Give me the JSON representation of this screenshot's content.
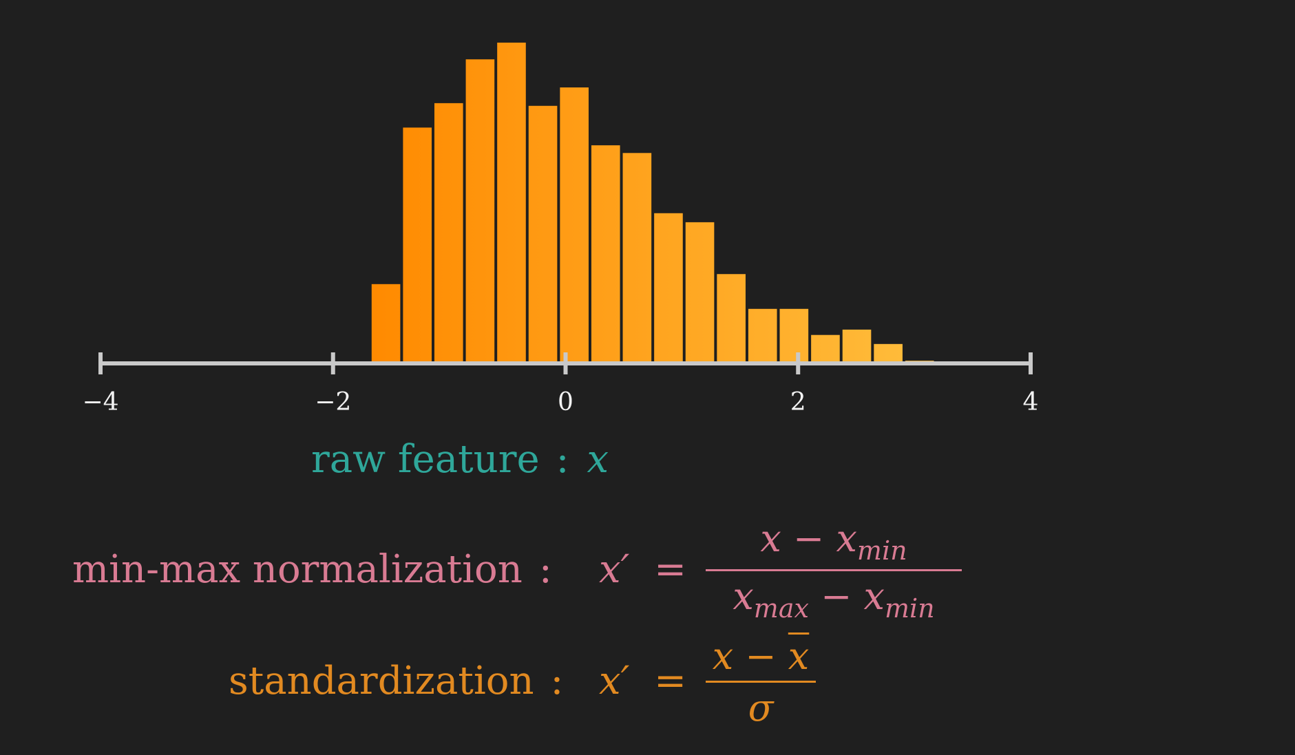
{
  "chart_data": {
    "type": "bar",
    "title": "",
    "xlabel": "",
    "ylabel": "",
    "xlim": [
      -4,
      4
    ],
    "x_ticks": [
      "−4",
      "−2",
      "0",
      "2",
      "4"
    ],
    "x_tick_values": [
      -4,
      -2,
      0,
      2,
      4
    ],
    "bin_width": 0.27,
    "bins_start": [
      -1.68,
      -1.41,
      -1.14,
      -0.87,
      -0.6,
      -0.33,
      -0.06,
      0.21,
      0.48,
      0.75,
      1.02,
      1.29,
      1.56,
      1.83,
      2.1,
      2.37,
      2.64,
      2.91
    ],
    "values": [
      23.7,
      70.5,
      77.8,
      90.9,
      95.9,
      77.0,
      82.5,
      65.2,
      62.9,
      44.9,
      42.2,
      26.7,
      16.3,
      16.3,
      8.5,
      10.1,
      5.8,
      0.8
    ],
    "ylim": [
      0,
      100
    ],
    "colors": {
      "bar_start": "#ff8a00",
      "bar_end": "#ffbe3d",
      "axis": "#c9c9c9",
      "tick_label": "#f2f2f2",
      "background": "#1f1f1f"
    }
  },
  "labels": {
    "raw": {
      "text": "raw feature",
      "colon": ":",
      "symbol": "x",
      "color": "#2fa79a"
    },
    "minmax": {
      "text": "min-max normalization",
      "colon": ":",
      "lhs": "x′",
      "equals": "=",
      "numerator_var": "x",
      "numerator_op": "−",
      "numerator_sub_var": "x",
      "numerator_sub": "min",
      "denominator_var1": "x",
      "denominator_sub1": "max",
      "denominator_op": "−",
      "denominator_var2": "x",
      "denominator_sub2": "min",
      "color": "#d97b93"
    },
    "standard": {
      "text": "standardization",
      "colon": ":",
      "lhs": "x′",
      "equals": "=",
      "numerator_var": "x",
      "numerator_op": "−",
      "numerator_mean": "x",
      "denominator": "σ",
      "color": "#e28a21"
    }
  }
}
